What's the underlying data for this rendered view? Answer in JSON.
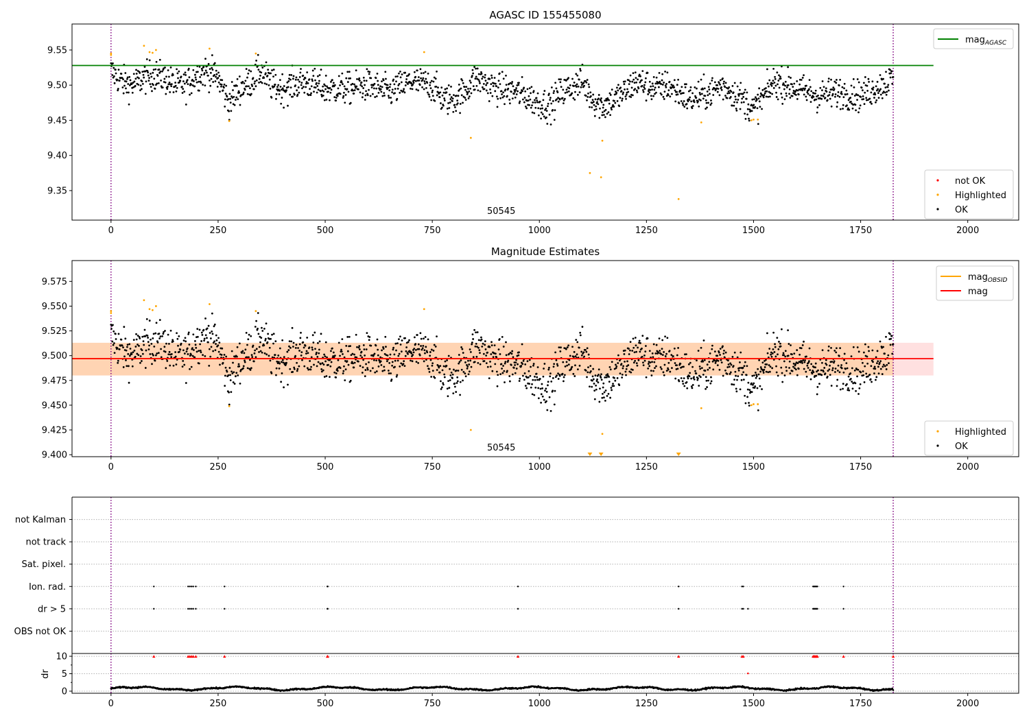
{
  "chart_data": [
    {
      "type": "scatter",
      "title": "AGASC ID 155455080",
      "xlim": [
        -91,
        2119
      ],
      "ylim": [
        9.308,
        9.587
      ],
      "xticks": [
        0,
        250,
        500,
        750,
        1000,
        1250,
        1500,
        1750,
        2000
      ],
      "xtick_labels": [
        "0",
        "250",
        "500",
        "750",
        "1000",
        "1250",
        "1500",
        "1750",
        "2000"
      ],
      "yticks": [
        9.35,
        9.4,
        9.45,
        9.5,
        9.55
      ],
      "ytick_labels": [
        "9.35",
        "9.40",
        "9.45",
        "9.50",
        "9.55"
      ],
      "annotation": "50545",
      "annotation_x": 911,
      "mag_agasc": 9.528,
      "mag_agasc_xrange": [
        -91,
        1920
      ],
      "vlines": [
        0,
        1826
      ],
      "legend_top": [
        {
          "label": "mag",
          "sub": "AGASC",
          "color": "#008000"
        }
      ],
      "legend_bottom": [
        {
          "label": "not OK",
          "color": "#ff0000"
        },
        {
          "label": "Highlighted",
          "color": "#ffa500"
        },
        {
          "label": "OK",
          "color": "#000000"
        }
      ]
    },
    {
      "type": "scatter",
      "title": "Magnitude Estimates",
      "xlim": [
        -91,
        2119
      ],
      "ylim": [
        9.398,
        9.596
      ],
      "xticks": [
        0,
        250,
        500,
        750,
        1000,
        1250,
        1500,
        1750,
        2000
      ],
      "xtick_labels": [
        "0",
        "250",
        "500",
        "750",
        "1000",
        "1250",
        "1500",
        "1750",
        "2000"
      ],
      "yticks": [
        9.4,
        9.425,
        9.45,
        9.475,
        9.5,
        9.525,
        9.55,
        9.575
      ],
      "ytick_labels": [
        "9.400",
        "9.425",
        "9.450",
        "9.475",
        "9.500",
        "9.525",
        "9.550",
        "9.575"
      ],
      "annotation": "50545",
      "annotation_x": 911,
      "mag": 9.497,
      "mag_band": [
        9.48,
        9.513
      ],
      "mag_band_xrange": [
        -91,
        1920
      ],
      "obsid_band_xrange": [
        -91,
        1826
      ],
      "below_range_markers_x": [
        1118,
        1144,
        1325
      ],
      "legend_top": [
        {
          "label": "mag",
          "sub": "OBSID",
          "color": "#ffa500"
        },
        {
          "label": "mag",
          "sub": "",
          "color": "#ff0000"
        }
      ],
      "legend_bottom": [
        {
          "label": "Highlighted",
          "color": "#ffa500"
        },
        {
          "label": "OK",
          "color": "#000000"
        }
      ]
    },
    {
      "type": "scatter",
      "title": "",
      "categories": [
        "OBS not OK",
        "dr > 5",
        "Ion. rad.",
        "Sat. pixel.",
        "not track",
        "not Kalman"
      ],
      "ylim": [
        -1,
        6
      ],
      "flags": {
        "dr > 5": [
          100,
          180,
          184,
          188,
          192,
          198,
          265,
          505,
          506,
          950,
          1325,
          1473,
          1476,
          1487,
          1639,
          1641,
          1643,
          1645,
          1647,
          1649,
          1710
        ],
        "Ion. rad.": [
          100,
          180,
          184,
          188,
          192,
          198,
          265,
          505,
          506,
          950,
          1325,
          1473,
          1476,
          1639,
          1641,
          1643,
          1645,
          1647,
          1649,
          1710
        ]
      }
    },
    {
      "type": "scatter",
      "ylabel": "dr",
      "ylim": [
        -0.6,
        10.8
      ],
      "yticks": [
        0,
        5,
        10
      ],
      "ytick_labels": [
        "0",
        "5",
        "10"
      ],
      "xticks": [
        0,
        250,
        500,
        750,
        1000,
        1250,
        1500,
        1750,
        2000
      ],
      "xtick_labels": [
        "0",
        "250",
        "500",
        "750",
        "1000",
        "1250",
        "1500",
        "1750",
        "2000"
      ],
      "dr_clipped_x": [
        100,
        180,
        184,
        188,
        192,
        198,
        265,
        505,
        506,
        950,
        1325,
        1473,
        1476,
        1639,
        1641,
        1643,
        1645,
        1647,
        1649,
        1710,
        1826
      ],
      "dr_outliers": [
        {
          "x": 1487,
          "y": 5.1
        }
      ],
      "dr_typical_range": [
        0.2,
        1.8
      ]
    }
  ],
  "series": {
    "mag_trend": [
      [
        0,
        9.52
      ],
      [
        25,
        9.505
      ],
      [
        50,
        9.5
      ],
      [
        75,
        9.51
      ],
      [
        100,
        9.515
      ],
      [
        125,
        9.51
      ],
      [
        150,
        9.5
      ],
      [
        175,
        9.5
      ],
      [
        200,
        9.515
      ],
      [
        225,
        9.52
      ],
      [
        250,
        9.51
      ],
      [
        275,
        9.475
      ],
      [
        300,
        9.495
      ],
      [
        325,
        9.505
      ],
      [
        350,
        9.52
      ],
      [
        375,
        9.5
      ],
      [
        400,
        9.495
      ],
      [
        450,
        9.505
      ],
      [
        500,
        9.495
      ],
      [
        550,
        9.495
      ],
      [
        600,
        9.5
      ],
      [
        650,
        9.49
      ],
      [
        700,
        9.505
      ],
      [
        750,
        9.5
      ],
      [
        775,
        9.48
      ],
      [
        800,
        9.48
      ],
      [
        825,
        9.49
      ],
      [
        850,
        9.51
      ],
      [
        900,
        9.495
      ],
      [
        950,
        9.49
      ],
      [
        1000,
        9.475
      ],
      [
        1025,
        9.47
      ],
      [
        1050,
        9.49
      ],
      [
        1100,
        9.505
      ],
      [
        1125,
        9.48
      ],
      [
        1150,
        9.47
      ],
      [
        1175,
        9.48
      ],
      [
        1200,
        9.49
      ],
      [
        1225,
        9.505
      ],
      [
        1275,
        9.495
      ],
      [
        1300,
        9.5
      ],
      [
        1350,
        9.48
      ],
      [
        1400,
        9.49
      ],
      [
        1425,
        9.5
      ],
      [
        1450,
        9.49
      ],
      [
        1475,
        9.48
      ],
      [
        1500,
        9.465
      ],
      [
        1525,
        9.485
      ],
      [
        1550,
        9.505
      ],
      [
        1600,
        9.495
      ],
      [
        1650,
        9.485
      ],
      [
        1700,
        9.49
      ],
      [
        1750,
        9.485
      ],
      [
        1800,
        9.5
      ],
      [
        1826,
        9.51
      ]
    ],
    "highlighted": [
      [
        0,
        9.545
      ],
      [
        0,
        9.543
      ],
      [
        77,
        9.556
      ],
      [
        90,
        9.547
      ],
      [
        97,
        9.546
      ],
      [
        105,
        9.55
      ],
      [
        230,
        9.552
      ],
      [
        276,
        9.449
      ],
      [
        338,
        9.545
      ],
      [
        731,
        9.547
      ],
      [
        840,
        9.425
      ],
      [
        1118,
        9.375
      ],
      [
        1144,
        9.369
      ],
      [
        1147,
        9.421
      ],
      [
        1325,
        9.338
      ],
      [
        1378,
        9.447
      ],
      [
        1495,
        9.45
      ],
      [
        1500,
        9.451
      ],
      [
        1510,
        9.451
      ]
    ]
  }
}
